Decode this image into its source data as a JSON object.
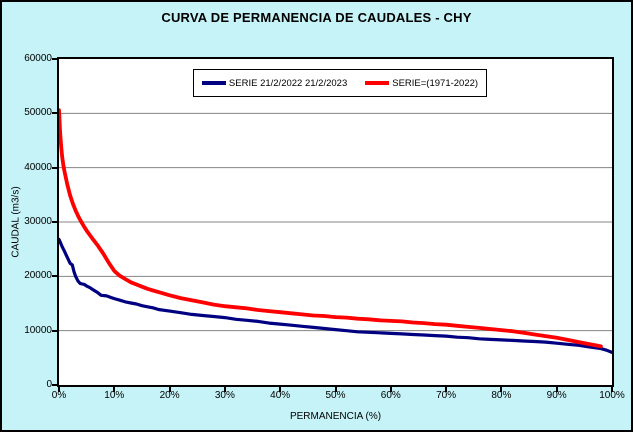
{
  "colors": {
    "background": "#C6F3F7",
    "plot_background": "#FFFFFF",
    "border": "#000000",
    "gridline": "#848484",
    "series1": "#000080",
    "series2": "#FF0000"
  },
  "chart_data": {
    "type": "line",
    "title": "CURVA DE PERMANENCIA DE CAUDALES - CHY",
    "xlabel": "PERMANENCIA (%)",
    "ylabel": "CAUDAL (m3/s)",
    "xlim": [
      0,
      100
    ],
    "ylim": [
      0,
      60000
    ],
    "grid": "horizontal-only",
    "legend_position": "top-center-inside",
    "x_ticks": [
      {
        "value": 0,
        "label": "0%"
      },
      {
        "value": 10,
        "label": "10%"
      },
      {
        "value": 20,
        "label": "20%"
      },
      {
        "value": 30,
        "label": "30%"
      },
      {
        "value": 40,
        "label": "40%"
      },
      {
        "value": 50,
        "label": "50%"
      },
      {
        "value": 60,
        "label": "60%"
      },
      {
        "value": 70,
        "label": "70%"
      },
      {
        "value": 80,
        "label": "80%"
      },
      {
        "value": 90,
        "label": "90%"
      },
      {
        "value": 100,
        "label": "100%"
      }
    ],
    "y_ticks": [
      {
        "value": 0,
        "label": "0"
      },
      {
        "value": 10000,
        "label": "10000"
      },
      {
        "value": 20000,
        "label": "20000"
      },
      {
        "value": 30000,
        "label": "30000"
      },
      {
        "value": 40000,
        "label": "40000"
      },
      {
        "value": 50000,
        "label": "50000"
      },
      {
        "value": 60000,
        "label": "60000"
      }
    ],
    "series": [
      {
        "name": "SERIE 21/2/2022 21/2/2023",
        "color": "#000080",
        "line_width": 3.2,
        "points": [
          [
            0,
            26800
          ],
          [
            0.3,
            26100
          ],
          [
            0.6,
            25400
          ],
          [
            1,
            24600
          ],
          [
            1.3,
            23900
          ],
          [
            1.6,
            23300
          ],
          [
            2,
            22400
          ],
          [
            2.4,
            22100
          ],
          [
            2.7,
            20900
          ],
          [
            3,
            20000
          ],
          [
            3.4,
            19200
          ],
          [
            3.8,
            18700
          ],
          [
            4.6,
            18500
          ],
          [
            5,
            18200
          ],
          [
            5.6,
            17900
          ],
          [
            6.2,
            17500
          ],
          [
            7,
            17000
          ],
          [
            7.6,
            16500
          ],
          [
            8.6,
            16400
          ],
          [
            9.4,
            16100
          ],
          [
            10,
            15900
          ],
          [
            11,
            15600
          ],
          [
            12,
            15300
          ],
          [
            13,
            15100
          ],
          [
            14,
            14900
          ],
          [
            15,
            14600
          ],
          [
            16,
            14400
          ],
          [
            17,
            14200
          ],
          [
            18,
            13900
          ],
          [
            20,
            13600
          ],
          [
            22,
            13300
          ],
          [
            24,
            13000
          ],
          [
            26,
            12800
          ],
          [
            28,
            12600
          ],
          [
            30,
            12400
          ],
          [
            32,
            12100
          ],
          [
            34,
            11900
          ],
          [
            36,
            11700
          ],
          [
            38,
            11400
          ],
          [
            40,
            11200
          ],
          [
            42,
            11000
          ],
          [
            44,
            10800
          ],
          [
            46,
            10600
          ],
          [
            48,
            10400
          ],
          [
            50,
            10200
          ],
          [
            52,
            10000
          ],
          [
            54,
            9800
          ],
          [
            56,
            9700
          ],
          [
            58,
            9600
          ],
          [
            60,
            9500
          ],
          [
            62,
            9400
          ],
          [
            64,
            9300
          ],
          [
            66,
            9200
          ],
          [
            68,
            9100
          ],
          [
            70,
            9000
          ],
          [
            72,
            8800
          ],
          [
            74,
            8700
          ],
          [
            76,
            8500
          ],
          [
            78,
            8400
          ],
          [
            80,
            8300
          ],
          [
            82,
            8200
          ],
          [
            84,
            8100
          ],
          [
            86,
            8000
          ],
          [
            88,
            7900
          ],
          [
            90,
            7700
          ],
          [
            92,
            7500
          ],
          [
            94,
            7300
          ],
          [
            96,
            7000
          ],
          [
            98,
            6700
          ],
          [
            99,
            6400
          ],
          [
            100,
            6000
          ]
        ]
      },
      {
        "name": "SERIE=(1971-2022)",
        "color": "#FF0000",
        "line_width": 3.8,
        "points": [
          [
            0,
            50600
          ],
          [
            0.2,
            46500
          ],
          [
            0.4,
            43800
          ],
          [
            0.6,
            41800
          ],
          [
            0.8,
            40400
          ],
          [
            1,
            39300
          ],
          [
            1.5,
            36900
          ],
          [
            2,
            34900
          ],
          [
            2.5,
            33400
          ],
          [
            3,
            32100
          ],
          [
            3.5,
            31000
          ],
          [
            4,
            30100
          ],
          [
            4.5,
            29200
          ],
          [
            5,
            28400
          ],
          [
            6,
            27000
          ],
          [
            7,
            25700
          ],
          [
            8,
            24200
          ],
          [
            9,
            22500
          ],
          [
            10,
            21000
          ],
          [
            11,
            20100
          ],
          [
            12,
            19500
          ],
          [
            13,
            18900
          ],
          [
            14,
            18500
          ],
          [
            15,
            18100
          ],
          [
            16,
            17700
          ],
          [
            17,
            17400
          ],
          [
            18,
            17100
          ],
          [
            19,
            16800
          ],
          [
            20,
            16500
          ],
          [
            22,
            16000
          ],
          [
            24,
            15600
          ],
          [
            26,
            15200
          ],
          [
            28,
            14800
          ],
          [
            30,
            14500
          ],
          [
            32,
            14300
          ],
          [
            34,
            14100
          ],
          [
            36,
            13800
          ],
          [
            38,
            13600
          ],
          [
            40,
            13400
          ],
          [
            42,
            13200
          ],
          [
            44,
            13000
          ],
          [
            46,
            12800
          ],
          [
            48,
            12700
          ],
          [
            50,
            12500
          ],
          [
            52,
            12400
          ],
          [
            54,
            12200
          ],
          [
            56,
            12100
          ],
          [
            58,
            11900
          ],
          [
            60,
            11800
          ],
          [
            62,
            11700
          ],
          [
            64,
            11500
          ],
          [
            66,
            11400
          ],
          [
            68,
            11200
          ],
          [
            70,
            11100
          ],
          [
            72,
            10900
          ],
          [
            74,
            10700
          ],
          [
            76,
            10500
          ],
          [
            78,
            10300
          ],
          [
            80,
            10100
          ],
          [
            82,
            9900
          ],
          [
            84,
            9600
          ],
          [
            86,
            9300
          ],
          [
            88,
            9000
          ],
          [
            90,
            8700
          ],
          [
            92,
            8300
          ],
          [
            94,
            7900
          ],
          [
            96,
            7500
          ],
          [
            97,
            7300
          ],
          [
            98,
            7100
          ]
        ]
      }
    ]
  }
}
